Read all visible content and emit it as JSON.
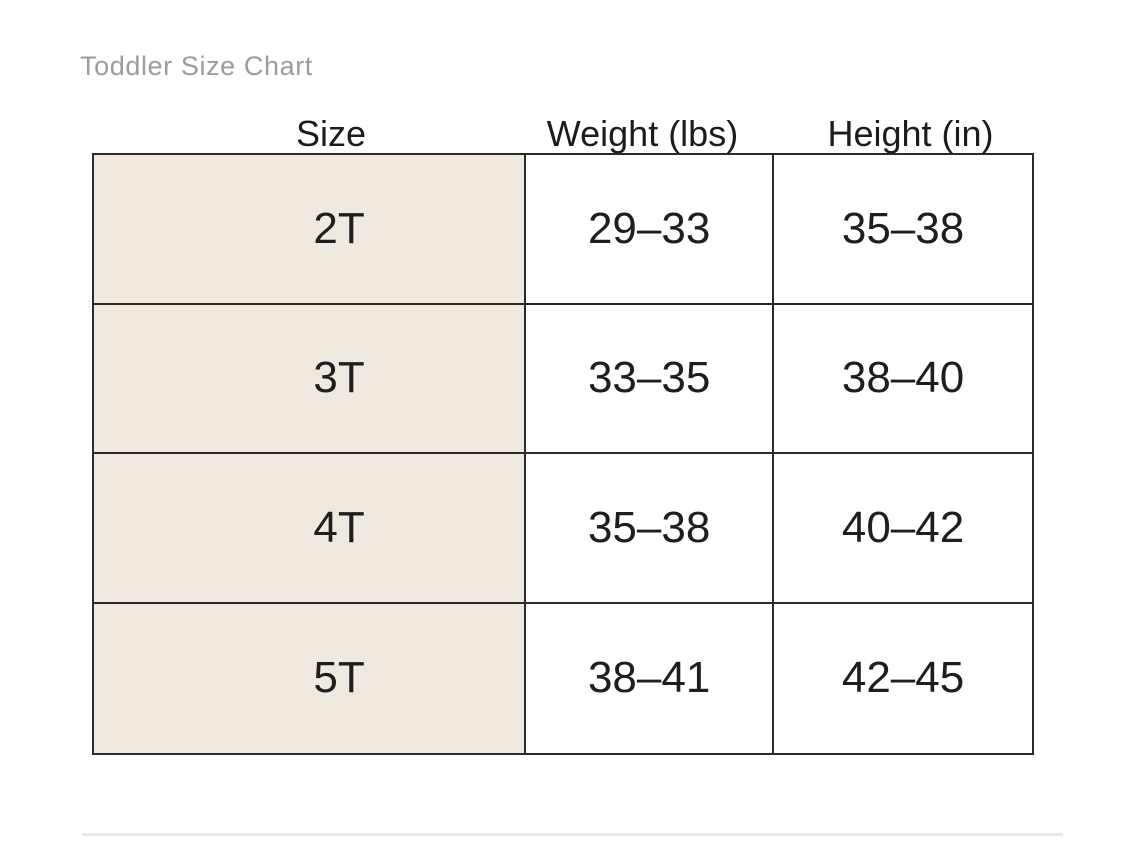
{
  "page": {
    "title": "Toddler Size Chart"
  },
  "chart_data": {
    "type": "table",
    "title": "Toddler Size Chart",
    "columns": [
      "Size",
      "Weight (lbs)",
      "Height (in)"
    ],
    "rows": [
      [
        "2T",
        "29–33",
        "35–38"
      ],
      [
        "3T",
        "33–35",
        "38–40"
      ],
      [
        "4T",
        "35–38",
        "40–42"
      ],
      [
        "5T",
        "38–41",
        "42–45"
      ]
    ],
    "layout_hints": {
      "size_column_shaded": true,
      "headers_outside_border": true,
      "grid": "on"
    }
  },
  "colors": {
    "size_column_bg": "#f0e9df",
    "table_border": "#2a2a2a",
    "title_text": "#9c9c9c",
    "cell_text": "#1e1e1e",
    "divider": "#e7e7e7"
  }
}
